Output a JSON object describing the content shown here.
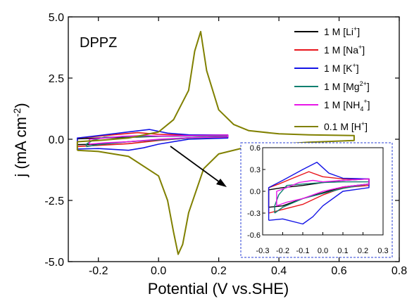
{
  "chart_data": [
    {
      "type": "line",
      "annotation": "DPPZ",
      "xlabel": "Potential (V vs.SHE)",
      "ylabel": "j (mA cm-2)",
      "ylabel_parts": {
        "main": "j (mA cm",
        "sup": "-2",
        "end": ")"
      },
      "xlim": [
        -0.3,
        0.8
      ],
      "ylim": [
        -5.0,
        5.0
      ],
      "x_ticks": [
        -0.2,
        0.0,
        0.2,
        0.4,
        0.6,
        0.8
      ],
      "x_tick_labels": [
        "-0.2",
        "0.0",
        "0.2",
        "0.4",
        "0.6",
        "0.8"
      ],
      "y_ticks": [
        -5.0,
        -2.5,
        0.0,
        2.5,
        5.0
      ],
      "y_tick_labels": [
        "-5.0",
        "-2.5",
        "0.0",
        "2.5",
        "5.0"
      ],
      "legend_position": "top-right",
      "series": [
        {
          "legend": "1 M [Li+]",
          "label_main": "1 M [Li",
          "label_sup": "+",
          "label_end": "]",
          "color": "#000000",
          "x": [
            -0.27,
            -0.2,
            -0.1,
            0.0,
            0.1,
            0.23,
            0.23,
            0.1,
            0.0,
            -0.1,
            -0.2,
            -0.27,
            -0.27
          ],
          "y": [
            -0.22,
            -0.2,
            -0.1,
            -0.02,
            0.06,
            0.1,
            0.17,
            0.15,
            0.12,
            0.08,
            0.05,
            0.02,
            -0.22
          ]
        },
        {
          "legend": "1 M [Na+]",
          "label_main": "1 M [Na",
          "label_sup": "+",
          "label_end": "]",
          "color": "#e8141b",
          "x": [
            -0.27,
            -0.2,
            -0.1,
            0.0,
            0.1,
            0.23,
            0.23,
            0.1,
            0.0,
            -0.07,
            -0.15,
            -0.22,
            -0.27,
            -0.27
          ],
          "y": [
            -0.3,
            -0.25,
            -0.18,
            -0.05,
            0.05,
            0.08,
            0.17,
            0.17,
            0.2,
            0.27,
            0.18,
            0.1,
            0.05,
            -0.3
          ]
        },
        {
          "legend": "1 M [K+]",
          "label_main": "1 M [K",
          "label_sup": "+",
          "label_end": "]",
          "color": "#1414e6",
          "x": [
            -0.27,
            -0.2,
            -0.1,
            -0.05,
            0.0,
            0.1,
            0.23,
            0.23,
            0.1,
            0.03,
            -0.03,
            -0.1,
            -0.2,
            -0.27,
            -0.27
          ],
          "y": [
            -0.4,
            -0.38,
            -0.45,
            -0.35,
            -0.2,
            0.0,
            0.05,
            0.17,
            0.18,
            0.25,
            0.4,
            0.3,
            0.15,
            0.05,
            -0.4
          ]
        },
        {
          "legend": "1 M [Mg2+]",
          "label_main": "1 M [Mg",
          "label_sup": "2+",
          "label_end": "]",
          "color": "#0f7f6f",
          "x": [
            -0.24,
            -0.2,
            -0.1,
            0.0,
            0.1,
            0.23,
            0.23,
            0.1,
            0.0,
            -0.1,
            -0.18,
            -0.22,
            -0.24,
            -0.24
          ],
          "y": [
            -0.3,
            -0.22,
            -0.1,
            -0.03,
            0.04,
            0.1,
            0.13,
            0.13,
            0.12,
            0.1,
            0.08,
            -0.05,
            -0.2,
            -0.3
          ]
        },
        {
          "legend": "1 M [NH4+]",
          "label_main": "1 M [NH",
          "label_sub": "4",
          "label_sup": "+",
          "label_end": "]",
          "color": "#e816e8",
          "x": [
            -0.23,
            -0.18,
            -0.1,
            0.0,
            0.1,
            0.23,
            0.23,
            0.1,
            0.0,
            -0.05,
            -0.12,
            -0.18,
            -0.23,
            -0.23
          ],
          "y": [
            -0.2,
            -0.15,
            -0.1,
            0.0,
            0.06,
            0.1,
            0.17,
            0.15,
            0.13,
            0.15,
            0.12,
            0.05,
            0.0,
            -0.2
          ]
        },
        {
          "legend": "0.1 M [H+]",
          "label_main": "0.1 M [H",
          "label_sup": "+",
          "label_end": "]",
          "color": "#808000",
          "x": [
            -0.27,
            -0.2,
            -0.1,
            0.0,
            0.03,
            0.05,
            0.065,
            0.08,
            0.1,
            0.15,
            0.2,
            0.3,
            0.4,
            0.5,
            0.65,
            0.65,
            0.5,
            0.4,
            0.3,
            0.25,
            0.2,
            0.16,
            0.14,
            0.12,
            0.1,
            0.05,
            0.0,
            -0.1,
            -0.2,
            -0.27,
            -0.27
          ],
          "y": [
            -0.45,
            -0.5,
            -0.7,
            -1.5,
            -2.5,
            -3.8,
            -4.7,
            -4.3,
            -3.0,
            -1.2,
            -0.6,
            -0.3,
            -0.2,
            -0.12,
            -0.05,
            0.15,
            0.18,
            0.22,
            0.35,
            0.6,
            1.2,
            2.8,
            4.4,
            3.6,
            2.0,
            0.8,
            0.3,
            0.05,
            -0.05,
            -0.1,
            -0.45
          ]
        }
      ]
    },
    {
      "type": "line",
      "role": "inset",
      "xlim": [
        -0.3,
        0.3
      ],
      "ylim": [
        -0.6,
        0.6
      ],
      "x_ticks": [
        -0.3,
        -0.2,
        -0.1,
        0.0,
        0.1,
        0.2,
        0.3
      ],
      "x_tick_labels": [
        "-0.3",
        "-0.2",
        "-0.1",
        "0.0",
        "0.1",
        "0.2",
        "0.3"
      ],
      "y_ticks": [
        -0.6,
        -0.3,
        0.0,
        0.3,
        0.6
      ],
      "y_tick_labels": [
        "-0.6",
        "-0.3",
        "0.0",
        "0.3",
        "0.6"
      ],
      "series_from_main": [
        0,
        1,
        2,
        3,
        4
      ]
    }
  ]
}
